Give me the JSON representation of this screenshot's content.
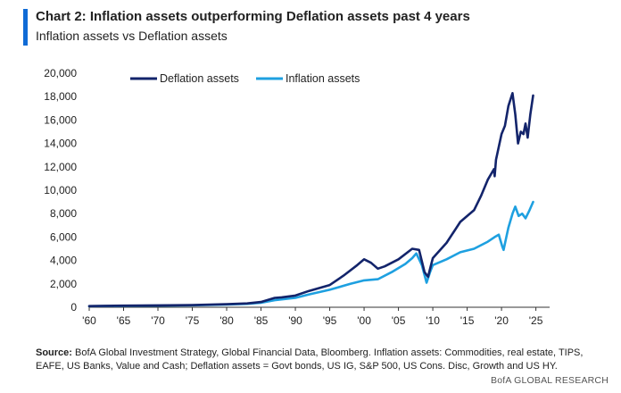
{
  "header": {
    "title": "Chart 2: Inflation assets outperforming Deflation assets past 4 years",
    "subtitle": "Inflation assets vs Deflation assets"
  },
  "footer": {
    "source_label": "Source:",
    "source_text": "BofA Global Investment Strategy, Global Financial Data, Bloomberg. Inflation assets: Commodities, real estate, TIPS, EAFE, US Banks, Value and Cash; Deflation assets = Govt bonds, US IG, S&P 500, US Cons. Disc, Growth and US HY.",
    "brand": "BofA GLOBAL RESEARCH"
  },
  "colors": {
    "accent_bar": "#0f6bd6",
    "deflation": "#13246b",
    "inflation": "#1ea0e0",
    "axis": "#333333"
  },
  "chart_data": {
    "type": "line",
    "xlim": [
      1960,
      2027
    ],
    "ylim": [
      0,
      20000
    ],
    "x_ticks": [
      1960,
      1965,
      1970,
      1975,
      1980,
      1985,
      1990,
      1995,
      2000,
      2005,
      2010,
      2015,
      2020,
      2025
    ],
    "x_tick_labels": [
      "'60",
      "'65",
      "'70",
      "'75",
      "'80",
      "'85",
      "'90",
      "'95",
      "'00",
      "'05",
      "'10",
      "'15",
      "'20",
      "'25"
    ],
    "y_ticks": [
      0,
      2000,
      4000,
      6000,
      8000,
      10000,
      12000,
      14000,
      16000,
      18000,
      20000
    ],
    "y_tick_labels": [
      "0",
      "2,000",
      "4,000",
      "6,000",
      "8,000",
      "10,000",
      "12,000",
      "14,000",
      "16,000",
      "18,000",
      "20,000"
    ],
    "grid": false,
    "legend_position": "top-left",
    "series": [
      {
        "name": "Deflation assets",
        "color": "#13246b",
        "points": [
          [
            1960,
            100
          ],
          [
            1965,
            140
          ],
          [
            1970,
            160
          ],
          [
            1975,
            180
          ],
          [
            1980,
            260
          ],
          [
            1983,
            330
          ],
          [
            1985,
            450
          ],
          [
            1987,
            800
          ],
          [
            1988,
            850
          ],
          [
            1990,
            1000
          ],
          [
            1992,
            1400
          ],
          [
            1995,
            1900
          ],
          [
            1997,
            2700
          ],
          [
            1999,
            3600
          ],
          [
            2000,
            4100
          ],
          [
            2001,
            3800
          ],
          [
            2002,
            3300
          ],
          [
            2003,
            3500
          ],
          [
            2005,
            4100
          ],
          [
            2007,
            5000
          ],
          [
            2008,
            4900
          ],
          [
            2008.8,
            3000
          ],
          [
            2009.3,
            2600
          ],
          [
            2010,
            4200
          ],
          [
            2012,
            5500
          ],
          [
            2014,
            7300
          ],
          [
            2016,
            8300
          ],
          [
            2017,
            9500
          ],
          [
            2018,
            10900
          ],
          [
            2018.9,
            11800
          ],
          [
            2019,
            11200
          ],
          [
            2019.2,
            12600
          ],
          [
            2020,
            14800
          ],
          [
            2020.5,
            15500
          ],
          [
            2021,
            17200
          ],
          [
            2021.6,
            18300
          ],
          [
            2022,
            16500
          ],
          [
            2022.4,
            14000
          ],
          [
            2022.8,
            15000
          ],
          [
            2023.2,
            14800
          ],
          [
            2023.5,
            15700
          ],
          [
            2023.8,
            14500
          ],
          [
            2024.2,
            16500
          ],
          [
            2024.6,
            18100
          ]
        ]
      },
      {
        "name": "Inflation assets",
        "color": "#1ea0e0",
        "points": [
          [
            1960,
            90
          ],
          [
            1965,
            120
          ],
          [
            1970,
            140
          ],
          [
            1975,
            170
          ],
          [
            1980,
            230
          ],
          [
            1983,
            290
          ],
          [
            1985,
            380
          ],
          [
            1987,
            600
          ],
          [
            1990,
            800
          ],
          [
            1992,
            1100
          ],
          [
            1995,
            1500
          ],
          [
            1998,
            2000
          ],
          [
            2000,
            2300
          ],
          [
            2002,
            2400
          ],
          [
            2004,
            3000
          ],
          [
            2006,
            3700
          ],
          [
            2007,
            4200
          ],
          [
            2007.6,
            4600
          ],
          [
            2008.4,
            3600
          ],
          [
            2009.1,
            2100
          ],
          [
            2009.6,
            3000
          ],
          [
            2010,
            3600
          ],
          [
            2012,
            4100
          ],
          [
            2014,
            4700
          ],
          [
            2016,
            5000
          ],
          [
            2018,
            5600
          ],
          [
            2019,
            6000
          ],
          [
            2019.6,
            6200
          ],
          [
            2020.1,
            5200
          ],
          [
            2020.3,
            4900
          ],
          [
            2020.7,
            6000
          ],
          [
            2021,
            6800
          ],
          [
            2021.6,
            8000
          ],
          [
            2022,
            8600
          ],
          [
            2022.5,
            7800
          ],
          [
            2023,
            8000
          ],
          [
            2023.5,
            7600
          ],
          [
            2024,
            8200
          ],
          [
            2024.6,
            9000
          ]
        ]
      }
    ]
  }
}
